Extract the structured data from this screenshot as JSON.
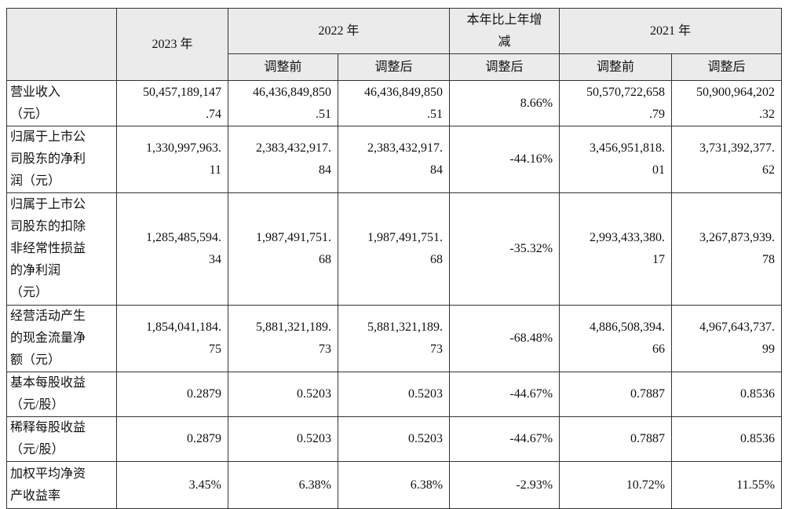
{
  "table": {
    "header": {
      "col_2023": "2023 年",
      "col_2022": "2022 年",
      "col_change": [
        "本年比上年增",
        "减"
      ],
      "col_2021": "2021 年",
      "sub": [
        "调整前",
        "调整后",
        "调整后",
        "调整前",
        "调整后"
      ]
    },
    "rows": [
      {
        "label": [
          "营业收入",
          "（元）"
        ],
        "cells": [
          [
            "50,457,189,147",
            ".74"
          ],
          [
            "46,436,849,850",
            ".51"
          ],
          [
            "46,436,849,850",
            ".51"
          ],
          [
            "8.66%"
          ],
          [
            "50,570,722,658",
            ".79"
          ],
          [
            "50,900,964,202",
            ".32"
          ]
        ]
      },
      {
        "label": [
          "归属于上市公",
          "司股东的净利",
          "润（元）"
        ],
        "cells": [
          [
            "1,330,997,963.",
            "11"
          ],
          [
            "2,383,432,917.",
            "84"
          ],
          [
            "2,383,432,917.",
            "84"
          ],
          [
            "-44.16%"
          ],
          [
            "3,456,951,818.",
            "01"
          ],
          [
            "3,731,392,377.",
            "62"
          ]
        ]
      },
      {
        "label": [
          "归属于上市公",
          "司股东的扣除",
          "非经常性损益",
          "的净利润",
          "（元）"
        ],
        "cells": [
          [
            "1,285,485,594.",
            "34"
          ],
          [
            "1,987,491,751.",
            "68"
          ],
          [
            "1,987,491,751.",
            "68"
          ],
          [
            "-35.32%"
          ],
          [
            "2,993,433,380.",
            "17"
          ],
          [
            "3,267,873,939.",
            "78"
          ]
        ]
      },
      {
        "label": [
          "经营活动产生",
          "的现金流量净",
          "额（元）"
        ],
        "cells": [
          [
            "1,854,041,184.",
            "75"
          ],
          [
            "5,881,321,189.",
            "73"
          ],
          [
            "5,881,321,189.",
            "73"
          ],
          [
            "-68.48%"
          ],
          [
            "4,886,508,394.",
            "66"
          ],
          [
            "4,967,643,737.",
            "99"
          ]
        ]
      },
      {
        "label": [
          "基本每股收益",
          "（元/股）"
        ],
        "cells": [
          [
            "0.2879"
          ],
          [
            "0.5203"
          ],
          [
            "0.5203"
          ],
          [
            "-44.67%"
          ],
          [
            "0.7887"
          ],
          [
            "0.8536"
          ]
        ]
      },
      {
        "label": [
          "稀释每股收益",
          "（元/股）"
        ],
        "cells": [
          [
            "0.2879"
          ],
          [
            "0.5203"
          ],
          [
            "0.5203"
          ],
          [
            "-44.67%"
          ],
          [
            "0.7887"
          ],
          [
            "0.8536"
          ]
        ]
      },
      {
        "label": [
          "加权平均净资",
          "产收益率"
        ],
        "cells": [
          [
            "3.45%"
          ],
          [
            "6.38%"
          ],
          [
            "6.38%"
          ],
          [
            "-2.93%"
          ],
          [
            "10.72%"
          ],
          [
            "11.55%"
          ]
        ]
      }
    ]
  }
}
